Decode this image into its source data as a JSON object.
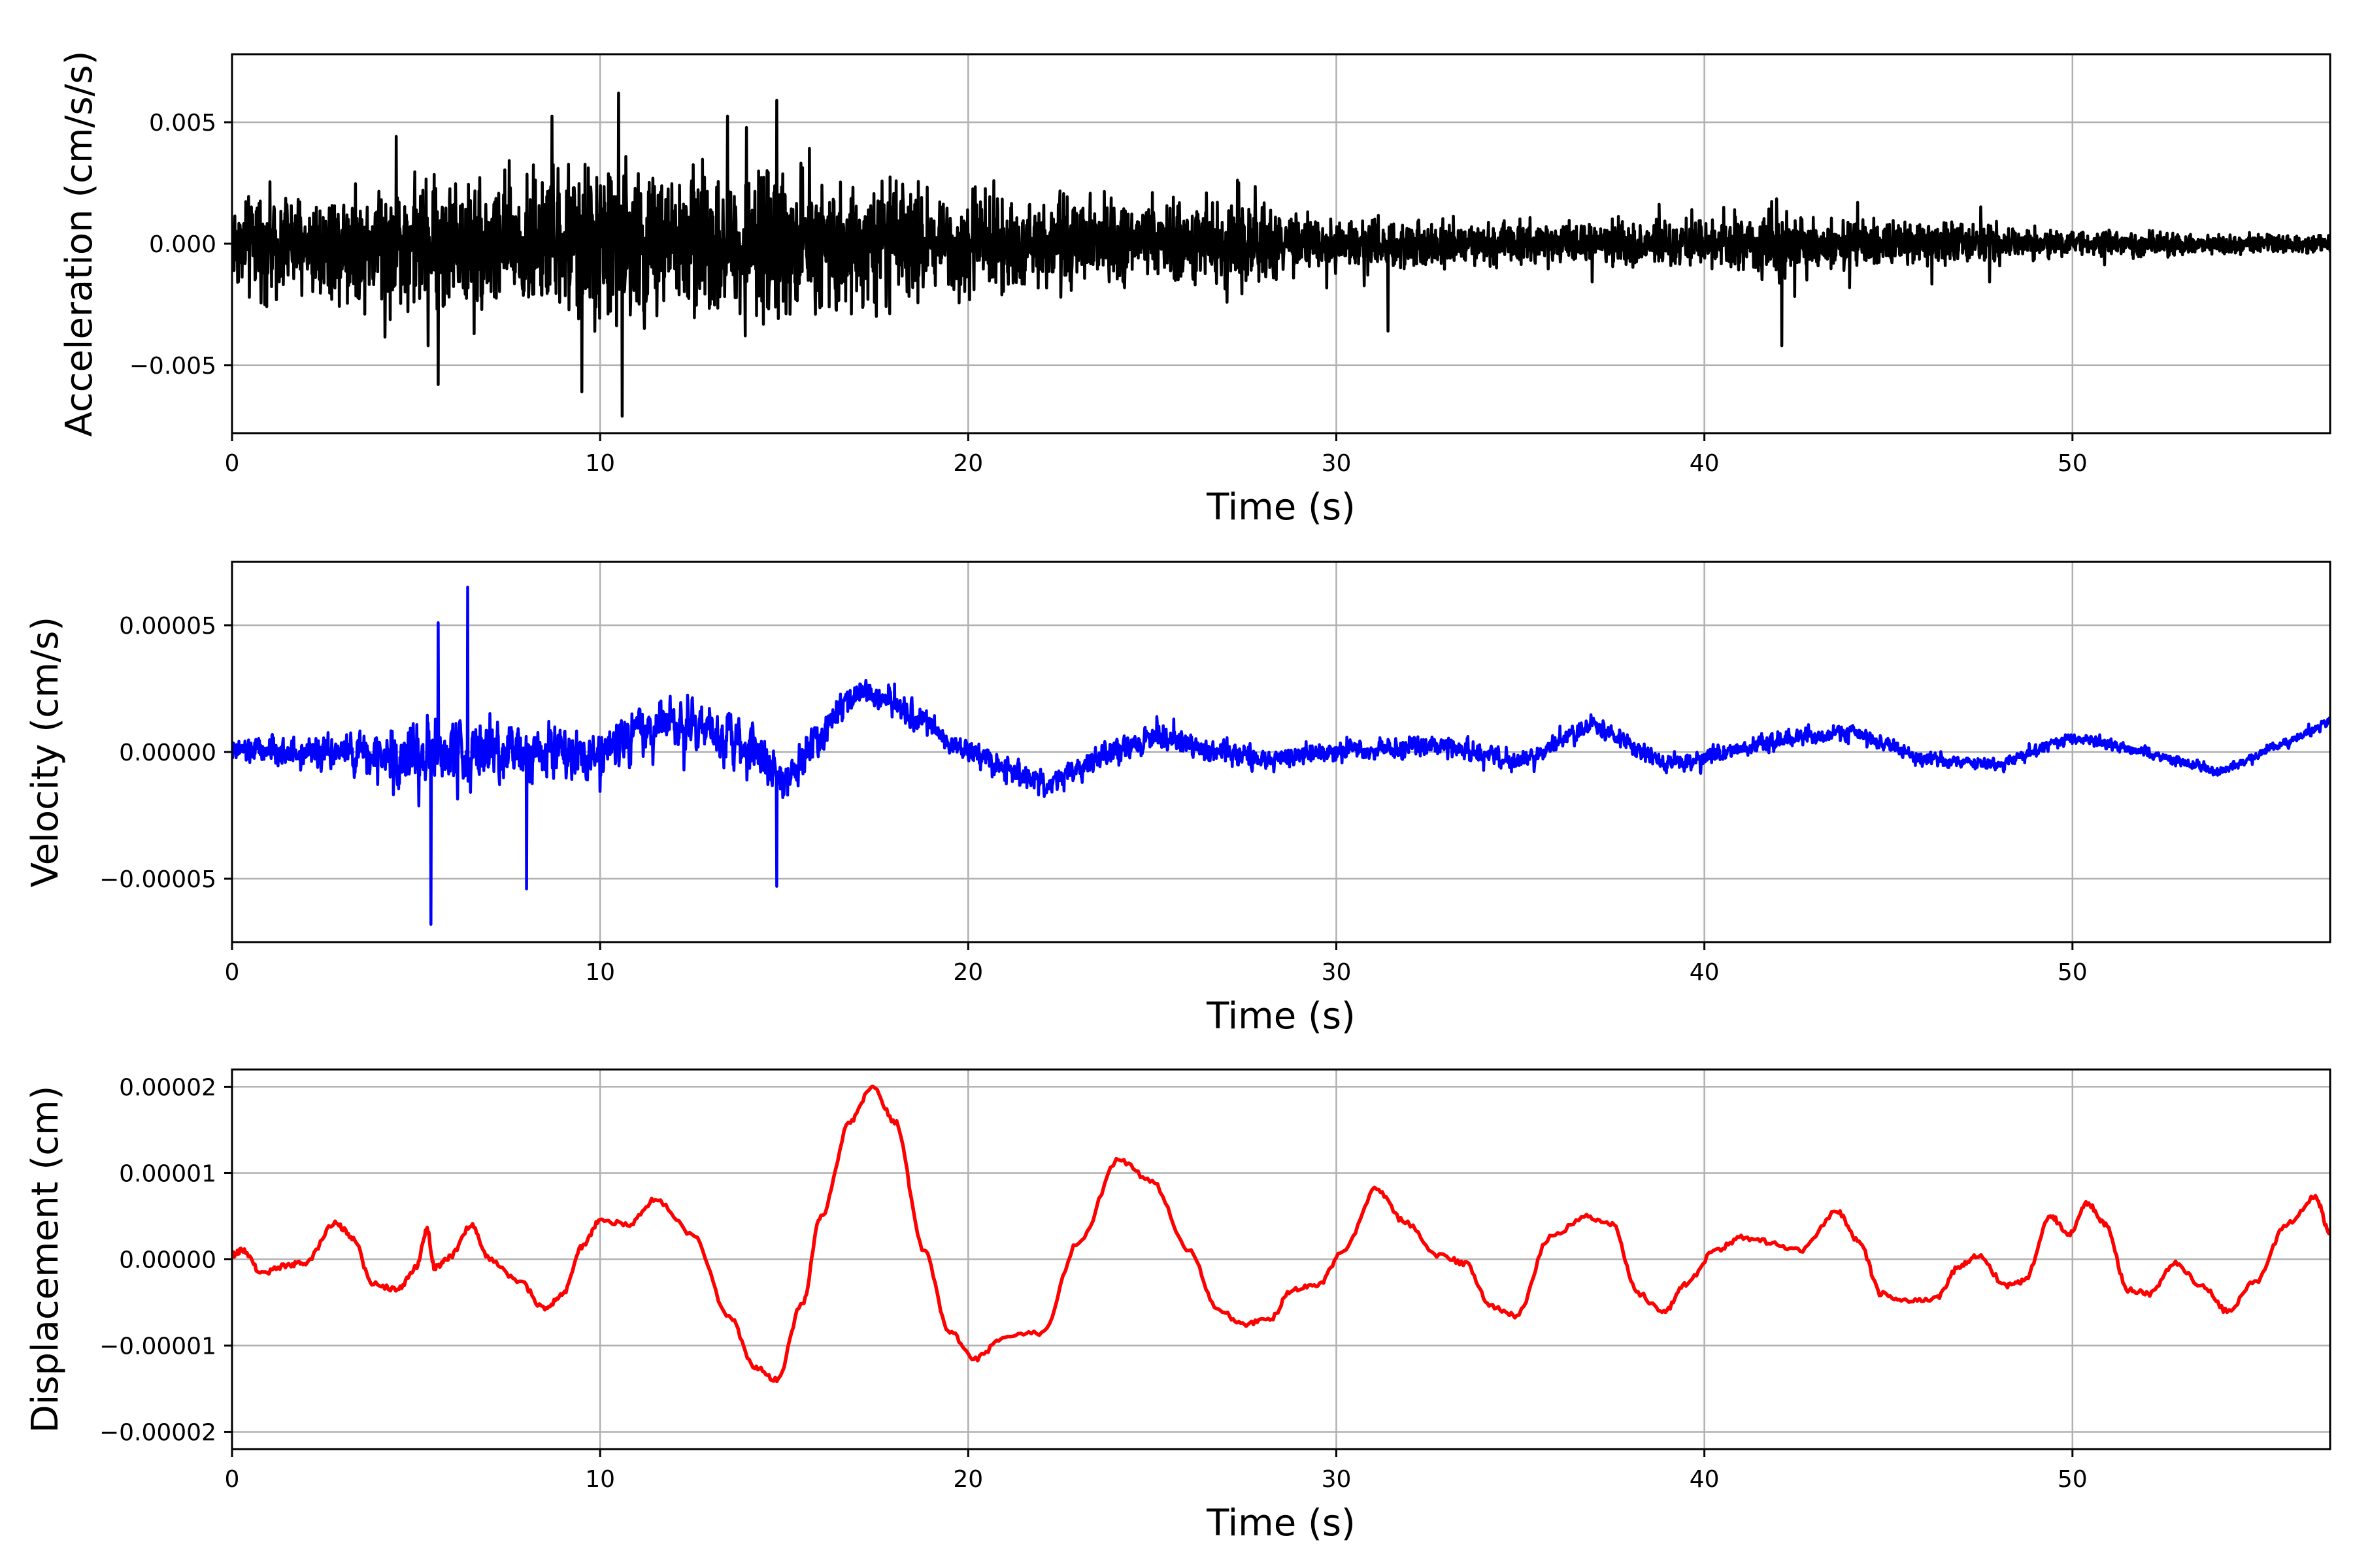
{
  "chart_data": [
    {
      "type": "line",
      "ylabel": "Acceleration (cm/s/s)",
      "xlabel": "Time (s)",
      "xlim": [
        0,
        57
      ],
      "ylim": [
        -0.0078,
        0.0078
      ],
      "xticks": [
        0,
        10,
        20,
        30,
        40,
        50
      ],
      "xtick_labels": [
        "0",
        "10",
        "20",
        "30",
        "40",
        "50"
      ],
      "yticks": [
        -0.005,
        0.0,
        0.005
      ],
      "ytick_labels": [
        "−0.005",
        "0.000",
        "0.005"
      ],
      "grid": true,
      "series": [
        {
          "color": "#000000",
          "kind": "noise",
          "envelope_t": [
            0,
            2,
            5,
            8,
            10.5,
            13,
            15,
            18,
            20,
            25,
            28,
            29,
            30,
            35,
            38,
            40,
            42,
            43,
            46,
            50,
            57
          ],
          "envelope_a": [
            0.0026,
            0.003,
            0.0038,
            0.004,
            0.0046,
            0.004,
            0.004,
            0.0033,
            0.0028,
            0.0022,
            0.0024,
            0.0015,
            0.0014,
            0.0012,
            0.0013,
            0.0013,
            0.0022,
            0.0013,
            0.0013,
            0.0007,
            0.0005
          ],
          "peaks": [
            [
              5.6,
              -0.0058
            ],
            [
              9.5,
              -0.0061
            ],
            [
              10.5,
              0.0062
            ],
            [
              10.6,
              -0.0071
            ],
            [
              14.8,
              0.0059
            ],
            [
              42.1,
              0.0035
            ],
            [
              42.1,
              -0.0042
            ],
            [
              31.4,
              -0.0036
            ]
          ]
        }
      ]
    },
    {
      "type": "line",
      "ylabel": "Velocity (cm/s)",
      "xlabel": "Time (s)",
      "xlim": [
        0,
        57
      ],
      "ylim": [
        -7.5e-05,
        7.5e-05
      ],
      "xticks": [
        0,
        10,
        20,
        30,
        40,
        50
      ],
      "xtick_labels": [
        "0",
        "10",
        "20",
        "30",
        "40",
        "50"
      ],
      "yticks": [
        -5e-05,
        0.0,
        5e-05
      ],
      "ytick_labels": [
        "−0.00005",
        "0.00000",
        "0.00005"
      ],
      "grid": true,
      "series": [
        {
          "color": "#0000ff",
          "kind": "trend+noise",
          "trend_t": [
            0,
            2,
            5,
            8,
            10,
            12,
            14,
            15,
            17,
            18,
            20,
            22,
            25,
            28,
            30,
            33,
            35,
            37,
            39,
            42,
            44,
            46,
            48,
            50,
            52,
            54,
            57
          ],
          "trend_v": [
            0,
            0,
            -2e-06,
            2e-06,
            0,
            1.3e-05,
            2e-06,
            -1.2e-05,
            2.5e-05,
            1.8e-05,
            0,
            -1.3e-05,
            6e-06,
            -3e-06,
            0,
            3e-06,
            -4e-06,
            1.1e-05,
            -5e-06,
            4e-06,
            8e-06,
            -3e-06,
            -5e-06,
            6e-06,
            0,
            -8e-06,
            1.2e-05
          ],
          "envelope_t": [
            0,
            3,
            5,
            7,
            10,
            14,
            17,
            20,
            25,
            30,
            40,
            50,
            57
          ],
          "envelope_a": [
            1.2e-05,
            1.4e-05,
            3e-05,
            2.8e-05,
            2e-05,
            2e-05,
            1.3e-05,
            1.2e-05,
            1.1e-05,
            9e-06,
            8e-06,
            5e-06,
            4e-06
          ],
          "peaks": [
            [
              5.4,
              -6.8e-05
            ],
            [
              6.4,
              6.5e-05
            ],
            [
              5.6,
              5.1e-05
            ],
            [
              14.8,
              -5.3e-05
            ],
            [
              8,
              -5.4e-05
            ]
          ]
        }
      ]
    },
    {
      "type": "line",
      "ylabel": "Displacement (cm)",
      "xlabel": "Time (s)",
      "xlim": [
        0,
        57
      ],
      "ylim": [
        -2.2e-05,
        2.2e-05
      ],
      "xticks": [
        0,
        10,
        20,
        30,
        40,
        50
      ],
      "xtick_labels": [
        "0",
        "10",
        "20",
        "30",
        "40",
        "50"
      ],
      "yticks": [
        -2e-05,
        -1e-05,
        0.0,
        1e-05,
        2e-05
      ],
      "ytick_labels": [
        "−0.00002",
        "−0.00001",
        "0.00000",
        "0.00001",
        "0.00002"
      ],
      "grid": true,
      "series": [
        {
          "color": "#ff0000",
          "kind": "smooth",
          "x": [
            0,
            0.3,
            0.8,
            1.5,
            2,
            2.8,
            3.3,
            3.8,
            4.5,
            5,
            5.3,
            5.5,
            5.9,
            6.5,
            7,
            7.8,
            8.5,
            9,
            9.5,
            10,
            10.8,
            11.5,
            12.5,
            13.5,
            14.2,
            14.8,
            15.5,
            16,
            16.8,
            17.4,
            18,
            18.8,
            19.5,
            20.2,
            21,
            22,
            23,
            24.1,
            25,
            26,
            26.8,
            27.5,
            28.2,
            28.8,
            29.5,
            30.2,
            31.1,
            31.8,
            32.8,
            33.5,
            34.2,
            34.9,
            35.8,
            36.8,
            37.5,
            38.2,
            38.9,
            39.5,
            40.3,
            41,
            41.8,
            42.6,
            43.6,
            44.2,
            44.8,
            45.5,
            46.3,
            46.9,
            47.4,
            48.2,
            48.7,
            49.4,
            49.9,
            50.4,
            50.9,
            51.5,
            52.1,
            52.8,
            53.5,
            54.2,
            55,
            55.8,
            56.6,
            57
          ],
          "y": [
            5e-07,
            1.1e-06,
            -1.6e-06,
            -7e-07,
            -4e-07,
            4.2e-06,
            2.5e-06,
            -2.8e-06,
            -3.5e-06,
            -1e-06,
            3.5e-06,
            -1e-06,
            2e-07,
            4e-06,
            0.0,
            -2.5e-06,
            -5.8e-06,
            -4e-06,
            1.5e-06,
            4.5e-06,
            4e-06,
            7e-06,
            3e-06,
            -6.5e-06,
            -1.25e-05,
            -1.4e-05,
            -5e-06,
            5e-06,
            1.6e-05,
            2e-05,
            1.6e-05,
            1e-06,
            -8.5e-06,
            -1.15e-05,
            -9e-06,
            -8.5e-06,
            2e-06,
            1.15e-05,
            9e-06,
            1e-06,
            -6e-06,
            -7.5e-06,
            -7e-06,
            -3.5e-06,
            -3e-06,
            1e-06,
            8.2e-06,
            4.5e-06,
            5e-07,
            -5e-07,
            -5.5e-06,
            -6.5e-06,
            2.5e-06,
            5e-06,
            4e-06,
            -4e-06,
            -6.2e-06,
            -2.8e-06,
            1e-06,
            2.5e-06,
            2e-06,
            1e-06,
            5.5e-06,
            2e-06,
            -4e-06,
            -4.8e-06,
            -4.5e-06,
            -1e-06,
            5e-07,
            -3e-06,
            -2.5e-06,
            5e-06,
            3e-06,
            6.5e-06,
            4e-06,
            -3.5e-06,
            -4e-06,
            -5e-07,
            -3e-06,
            -6e-06,
            -2.5e-06,
            4e-06,
            7.2e-06,
            3e-06
          ]
        }
      ]
    }
  ]
}
